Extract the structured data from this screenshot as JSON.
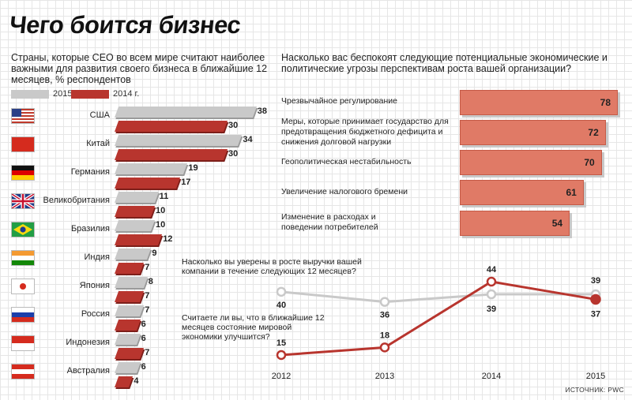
{
  "title": "Чего боится бизнес",
  "left_subtitle": "Страны, которые CEO во всем мире считают наиболее важными для развития своего бизнеса в ближайшие 12 месяцев, % респондентов",
  "right_subtitle": "Насколько вас беспокоят следующие потенциальные экономические и политические угрозы перспективам роста вашей организации?",
  "legend": {
    "y2015": "2015 г.",
    "y2014": "2014 г."
  },
  "colors": {
    "gray": "#c9c9c9",
    "red": "#b8352e",
    "salmon": "#e07a66",
    "grid": "#e6e6e6"
  },
  "flags": [
    "us-flag-icon",
    "cn-flag-icon",
    "de-flag-icon",
    "gb-flag-icon",
    "br-flag-icon",
    "in-flag-icon",
    "jp-flag-icon",
    "ru-flag-icon",
    "id-flag-icon",
    "at-flag-icon"
  ],
  "chart_data": [
    {
      "type": "bar",
      "categories": [
        "США",
        "Китай",
        "Германия",
        "Великобритания",
        "Бразилия",
        "Индия",
        "Япония",
        "Россия",
        "Индонезия",
        "Австралия"
      ],
      "series": [
        {
          "name": "2015 г.",
          "values": [
            38,
            34,
            19,
            11,
            10,
            9,
            8,
            7,
            6,
            6
          ]
        },
        {
          "name": "2014 г.",
          "values": [
            30,
            30,
            17,
            10,
            12,
            7,
            7,
            6,
            7,
            4
          ]
        }
      ],
      "orientation": "horizontal"
    },
    {
      "type": "bar",
      "categories": [
        "Чрезвычайное регулирование",
        "Меры, которые принимает государство для предотвращения бюджетного дефицита и снижения долговой нагрузки",
        "Геополитическая нестабильность",
        "Увеличение налогового бремени",
        "Изменение в расходах и поведении потребителей"
      ],
      "values": [
        78,
        72,
        70,
        61,
        54
      ],
      "orientation": "horizontal"
    },
    {
      "type": "line",
      "x": [
        "2012",
        "2013",
        "2014",
        "2015"
      ],
      "series": [
        {
          "name": "Насколько вы уверены в росте выручки вашей компании в течение следующих 12 месяцев?",
          "values": [
            40,
            36,
            39,
            39
          ]
        },
        {
          "name": "Считаете ли вы, что в ближайшие 12 месяцев состояние мировой экономики улучшится?",
          "values": [
            15,
            18,
            44,
            37
          ]
        }
      ]
    }
  ],
  "source": "ИСТОЧНИК: PWC"
}
